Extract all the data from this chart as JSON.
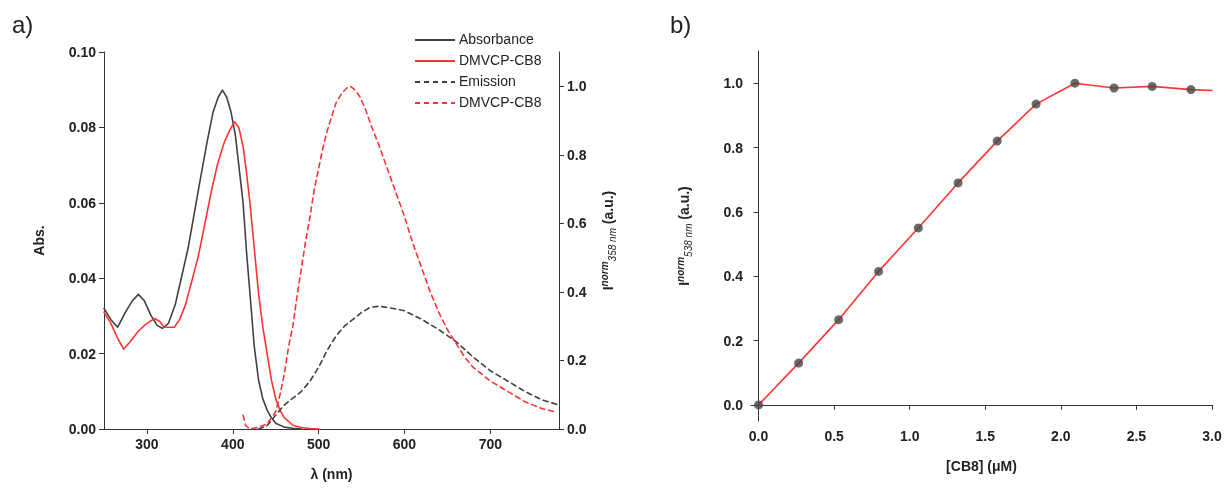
{
  "chart_data": [
    {
      "type": "line",
      "title": "a)",
      "xlabel": "λ (nm)",
      "ylabel": "Abs.",
      "y2label": "I$^{norm}$$_{358 nm}$ (a.u.)",
      "xlim": [
        250,
        780
      ],
      "xticks": [
        300,
        400,
        500,
        600,
        700
      ],
      "ylim": [
        0,
        0.1
      ],
      "yticks": [
        {
          "value": 0,
          "label": "0.00"
        },
        0.02,
        0.04,
        0.06,
        0.08,
        {
          "value": 0.1,
          "label": "0.10"
        }
      ],
      "y2lim": [
        0,
        1.1
      ],
      "y2ticks": [
        {
          "value": 0,
          "label": "0.0"
        },
        0.2,
        0.4,
        0.6,
        0.8,
        {
          "value": 1,
          "label": "1.0"
        }
      ],
      "grid": false,
      "legend": "top right",
      "marker": "none",
      "series": [
        {
          "name": "Absorbance",
          "color": "#404040",
          "line_style": "solid",
          "x": [
            250,
            258,
            266,
            275,
            283,
            290,
            297,
            305,
            312,
            318,
            325,
            333,
            340,
            348,
            355,
            362,
            370,
            377,
            383,
            388,
            393,
            398,
            403,
            407,
            412,
            416,
            420,
            425,
            430,
            435,
            440,
            445,
            450,
            460,
            470,
            480
          ],
          "values": [
            0.032,
            0.029,
            0.027,
            0.031,
            0.034,
            0.0357,
            0.034,
            0.03,
            0.0275,
            0.0267,
            0.028,
            0.033,
            0.04,
            0.048,
            0.057,
            0.066,
            0.076,
            0.084,
            0.088,
            0.0899,
            0.088,
            0.084,
            0.078,
            0.07,
            0.06,
            0.047,
            0.036,
            0.022,
            0.013,
            0.008,
            0.005,
            0.003,
            0.0015,
            0.0005,
            0.0002,
            0
          ]
        },
        {
          "name": "DMVCP-CB8",
          "color": "#ff3333",
          "line_style": "solid",
          "x": [
            250,
            258,
            266,
            273,
            280,
            290,
            300,
            309,
            315,
            320,
            325,
            332,
            338,
            345,
            352,
            360,
            368,
            375,
            382,
            390,
            396,
            402,
            407,
            412,
            416,
            420,
            425,
            430,
            435,
            440,
            445,
            450,
            455,
            460,
            470,
            480,
            490,
            500
          ],
          "values": [
            0.031,
            0.028,
            0.024,
            0.0212,
            0.023,
            0.026,
            0.028,
            0.0293,
            0.0285,
            0.027,
            0.027,
            0.027,
            0.029,
            0.033,
            0.039,
            0.046,
            0.055,
            0.063,
            0.07,
            0.076,
            0.079,
            0.0815,
            0.08,
            0.075,
            0.068,
            0.06,
            0.048,
            0.036,
            0.027,
            0.02,
            0.013,
            0.008,
            0.005,
            0.003,
            0.001,
            0.0004,
            0.0001,
            0
          ]
        },
        {
          "name": "Emission",
          "color": "#404040",
          "line_style": "dashed",
          "axis": "y2",
          "x": [
            430,
            440,
            450,
            460,
            470,
            480,
            490,
            500,
            510,
            520,
            530,
            540,
            550,
            560,
            570,
            580,
            590,
            600,
            620,
            640,
            660,
            680,
            700,
            720,
            740,
            760,
            780
          ],
          "values": [
            0,
            0.01,
            0.04,
            0.07,
            0.09,
            0.11,
            0.14,
            0.18,
            0.23,
            0.27,
            0.3,
            0.32,
            0.34,
            0.355,
            0.358,
            0.355,
            0.35,
            0.345,
            0.32,
            0.29,
            0.255,
            0.21,
            0.17,
            0.14,
            0.11,
            0.085,
            0.07
          ]
        },
        {
          "name": "DMVCP-CB8",
          "color": "#ff3333",
          "line_style": "dashed",
          "axis": "y2",
          "x": [
            412,
            415,
            420,
            430,
            440,
            450,
            455,
            460,
            465,
            470,
            475,
            480,
            485,
            490,
            495,
            500,
            505,
            510,
            515,
            520,
            527,
            533,
            537,
            542,
            548,
            555,
            562,
            570,
            580,
            590,
            600,
            610,
            620,
            630,
            640,
            650,
            660,
            670,
            680,
            690,
            700,
            720,
            740,
            760,
            775
          ],
          "values": [
            0.04,
            0.01,
            0,
            0.005,
            0.015,
            0.05,
            0.1,
            0.16,
            0.24,
            0.3,
            0.39,
            0.47,
            0.55,
            0.62,
            0.7,
            0.76,
            0.82,
            0.87,
            0.91,
            0.95,
            0.98,
            0.995,
            1.0,
            0.99,
            0.97,
            0.93,
            0.88,
            0.83,
            0.76,
            0.69,
            0.62,
            0.54,
            0.47,
            0.4,
            0.34,
            0.29,
            0.25,
            0.21,
            0.18,
            0.16,
            0.14,
            0.11,
            0.08,
            0.06,
            0.05
          ]
        }
      ]
    },
    {
      "type": "scatter",
      "title": "b)",
      "xlabel": "[CB8] (μM)",
      "ylabel": "I$^{norm}$$_{538 nm}$ (a.u.)",
      "xlim": [
        -0.05,
        3.0
      ],
      "xticks": [
        {
          "value": 0,
          "label": "0.0"
        },
        0.5,
        {
          "value": 1,
          "label": "1.0"
        },
        1.5,
        {
          "value": 2,
          "label": "2.0"
        },
        2.5,
        {
          "value": 3,
          "label": "3.0"
        }
      ],
      "ylim": [
        -0.05,
        1.1
      ],
      "yticks": [
        {
          "value": 0,
          "label": "0.0"
        },
        0.2,
        0.4,
        0.6,
        0.8,
        {
          "value": 1,
          "label": "1.0"
        }
      ],
      "grid": false,
      "series": [
        {
          "type": "line",
          "color": "#ff3333",
          "marker": "none",
          "line_style": "solid",
          "x": [
            0,
            0.265,
            0.53,
            0.794,
            1.057,
            1.32,
            1.579,
            1.836,
            2.093,
            2.352,
            2.604,
            2.861,
            3.0
          ],
          "values": [
            0,
            0.13,
            0.265,
            0.415,
            0.55,
            0.69,
            0.82,
            0.935,
            1.0,
            0.985,
            0.99,
            0.98,
            0.977
          ]
        },
        {
          "color": "#454545",
          "marker": "circle",
          "x": [
            0,
            0.265,
            0.53,
            0.794,
            1.057,
            1.32,
            1.579,
            1.836,
            2.093,
            2.352,
            2.604,
            2.861
          ],
          "values": [
            0,
            0.13,
            0.265,
            0.415,
            0.55,
            0.69,
            0.82,
            0.935,
            1.0,
            0.985,
            0.99,
            0.98
          ]
        }
      ]
    }
  ]
}
